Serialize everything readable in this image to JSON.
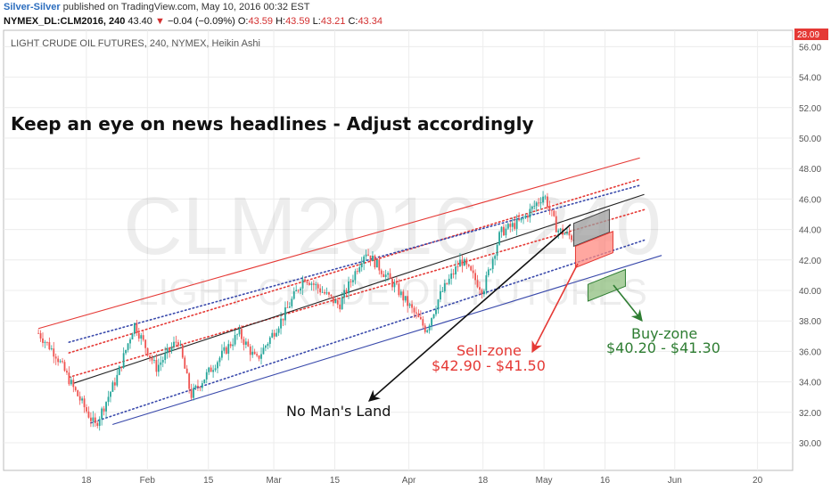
{
  "header": {
    "author": "Silver-Silver",
    "published": "published on TradingView.com, May 10, 2016 00:32 EST",
    "symbol": "NYMEX_DL:CLM2016, 240",
    "last": "43.40",
    "change_arrow": "▼",
    "change": "−0.04 (−0.09%)",
    "o_label": "O:",
    "o_value": "43.59",
    "h_label": "H:",
    "h_value": "43.59",
    "l_label": "L:",
    "l_value": "43.21",
    "c_label": "C:",
    "c_value": "43.34"
  },
  "chart_data": {
    "type": "candlestick",
    "title": "LIGHT CRUDE OIL FUTURES, 240, NYMEX, Heikin Ashi",
    "watermark_symbol": "CLM2016, 240",
    "watermark_name": "LIGHT CRUDE OIL FUTURES",
    "headline": "Keep an eye on news headlines - Adjust accordingly",
    "ylim": [
      29,
      59
    ],
    "yticks": [
      "30.00",
      "32.00",
      "34.00",
      "36.00",
      "38.00",
      "40.00",
      "42.00",
      "44.00",
      "46.00",
      "48.00",
      "50.00",
      "52.00",
      "54.00",
      "56.00"
    ],
    "price_tag": "28.09",
    "xticks": [
      "18",
      "Feb",
      "15",
      "Mar",
      "15",
      "Apr",
      "18",
      "May",
      "16",
      "Jun",
      "20"
    ],
    "grid": true,
    "colors": {
      "up": "#26a69a",
      "down": "#ef5350",
      "channel_upper": "#e53935",
      "channel_lower": "#3949ab",
      "mid": "#222222"
    },
    "price_path": [
      {
        "date": "2016-01-07",
        "price": 37.2
      },
      {
        "date": "2016-01-11",
        "price": 35.8
      },
      {
        "date": "2016-01-15",
        "price": 33.6
      },
      {
        "date": "2016-01-20",
        "price": 31.1
      },
      {
        "date": "2016-01-25",
        "price": 34.3
      },
      {
        "date": "2016-01-29",
        "price": 37.8
      },
      {
        "date": "2016-02-03",
        "price": 34.9
      },
      {
        "date": "2016-02-08",
        "price": 36.8
      },
      {
        "date": "2016-02-11",
        "price": 33.1
      },
      {
        "date": "2016-02-16",
        "price": 35.0
      },
      {
        "date": "2016-02-22",
        "price": 37.2
      },
      {
        "date": "2016-02-26",
        "price": 35.4
      },
      {
        "date": "2016-03-03",
        "price": 38.2
      },
      {
        "date": "2016-03-08",
        "price": 40.9
      },
      {
        "date": "2016-03-11",
        "price": 40.2
      },
      {
        "date": "2016-03-16",
        "price": 39.0
      },
      {
        "date": "2016-03-22",
        "price": 42.6
      },
      {
        "date": "2016-03-29",
        "price": 40.2
      },
      {
        "date": "2016-04-05",
        "price": 37.4
      },
      {
        "date": "2016-04-08",
        "price": 39.6
      },
      {
        "date": "2016-04-13",
        "price": 42.0
      },
      {
        "date": "2016-04-18",
        "price": 40.0
      },
      {
        "date": "2016-04-22",
        "price": 43.8
      },
      {
        "date": "2016-04-27",
        "price": 44.6
      },
      {
        "date": "2016-05-02",
        "price": 46.3
      },
      {
        "date": "2016-05-05",
        "price": 44.0
      },
      {
        "date": "2016-05-09",
        "price": 43.4
      }
    ],
    "channel_lines": [
      {
        "style": "solid",
        "color": "#e53935",
        "from": {
          "date": "2016-01-07",
          "price": 37.5
        },
        "to": {
          "date": "2016-05-24",
          "price": 48.7
        }
      },
      {
        "style": "dotted",
        "color": "#e53935",
        "from": {
          "date": "2016-01-14",
          "price": 35.9
        },
        "to": {
          "date": "2016-05-24",
          "price": 47.3
        }
      },
      {
        "style": "dotted",
        "color": "#e53935",
        "from": {
          "date": "2016-01-14",
          "price": 34.3
        },
        "to": {
          "date": "2016-05-25",
          "price": 45.3
        }
      },
      {
        "style": "dotted",
        "color": "#3949ab",
        "from": {
          "date": "2016-01-14",
          "price": 36.6
        },
        "to": {
          "date": "2016-05-24",
          "price": 46.9
        }
      },
      {
        "style": "solid",
        "color": "#222222",
        "from": {
          "date": "2016-01-15",
          "price": 33.9
        },
        "to": {
          "date": "2016-05-25",
          "price": 46.3
        }
      },
      {
        "style": "dotted",
        "color": "#3949ab",
        "from": {
          "date": "2016-01-19",
          "price": 31.3
        },
        "to": {
          "date": "2016-05-25",
          "price": 43.3
        }
      },
      {
        "style": "solid",
        "color": "#3949ab",
        "from": {
          "date": "2016-01-24",
          "price": 31.2
        },
        "to": {
          "date": "2016-05-29",
          "price": 42.3
        }
      }
    ],
    "zones": [
      {
        "label": "Sell-zone",
        "range": "$42.90 - $41.50",
        "low": 41.5,
        "high": 42.9,
        "color": "#e53935",
        "fill": "#ff8a80"
      },
      {
        "label": "Buy-zone",
        "range": "$40.20 - $41.30",
        "low": 40.2,
        "high": 41.3,
        "color": "#2e7d32",
        "fill": "#8fbf7f"
      }
    ],
    "neutral_zone": {
      "low": 43.3,
      "high": 44.8,
      "fill": "#9e9e9e"
    },
    "no_mans_land": "No Man's Land"
  }
}
